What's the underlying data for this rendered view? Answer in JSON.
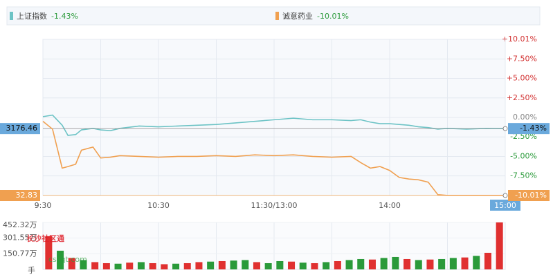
{
  "chart_data": {
    "type": "line",
    "x": [
      0,
      5,
      10,
      13,
      17,
      20,
      26,
      30,
      35,
      40,
      50,
      60,
      70,
      80,
      90,
      100,
      110,
      120,
      130,
      140,
      150,
      160,
      165,
      170,
      175,
      180,
      185,
      190,
      195,
      200,
      205,
      210,
      220,
      230,
      240
    ],
    "xlim": [
      0,
      240
    ],
    "xticks": [
      {
        "value": 0,
        "label": "9:30"
      },
      {
        "value": 60,
        "label": "10:30"
      },
      {
        "value": 120,
        "label": "11:30/13:00"
      },
      {
        "value": 180,
        "label": "14:00"
      },
      {
        "value": 240,
        "label": "15:00"
      }
    ],
    "ylim": [
      -10.01,
      10.01
    ],
    "yticks": [
      {
        "value": 10.01,
        "label": "+10.01%"
      },
      {
        "value": 7.5,
        "label": "+7.50%"
      },
      {
        "value": 5,
        "label": "+5.00%"
      },
      {
        "value": 2.5,
        "label": "+2.50%"
      },
      {
        "value": 0,
        "label": "0.00%"
      },
      {
        "value": -2.5,
        "label": "-2.50%"
      },
      {
        "value": -5,
        "label": "-5.00%"
      },
      {
        "value": -7.5,
        "label": "-7.50%"
      },
      {
        "value": -10.01,
        "label": "-10.01%"
      }
    ],
    "series": [
      {
        "name": "上证指数",
        "color": "#6cc3c5",
        "change_label": "-1.43%",
        "last_price": 3176.46,
        "values": [
          0.1,
          0.3,
          -1.0,
          -2.3,
          -2.2,
          -1.6,
          -1.4,
          -1.6,
          -1.7,
          -1.4,
          -1.1,
          -1.2,
          -1.1,
          -1.0,
          -0.9,
          -0.7,
          -0.5,
          -0.3,
          -0.1,
          -0.3,
          -0.3,
          -0.4,
          -0.3,
          -0.6,
          -0.8,
          -0.8,
          -0.9,
          -1.0,
          -1.2,
          -1.3,
          -1.5,
          -1.4,
          -1.5,
          -1.4,
          -1.43
        ]
      },
      {
        "name": "诚意药业",
        "color": "#f0a050",
        "change_label": "-10.01%",
        "last_price": 32.83,
        "values": [
          -0.5,
          -1.5,
          -6.5,
          -6.3,
          -6.0,
          -4.2,
          -3.8,
          -5.2,
          -5.1,
          -4.9,
          -5.0,
          -5.1,
          -5.0,
          -5.0,
          -4.9,
          -5.0,
          -4.8,
          -4.9,
          -4.8,
          -5.0,
          -5.1,
          -5.0,
          -5.8,
          -6.5,
          -6.3,
          -6.8,
          -7.7,
          -7.9,
          -8.0,
          -8.3,
          -9.9,
          -10.0,
          -10.0,
          -10.01,
          -10.01
        ]
      }
    ],
    "volume": {
      "ylim": [
        0,
        452.32
      ],
      "yticks": [
        {
          "value": 452.32,
          "label": "452.32万"
        },
        {
          "value": 301.55,
          "label": "301.55万"
        },
        {
          "value": 150.77,
          "label": "150.77万"
        }
      ],
      "unit": "手",
      "values": [
        320,
        180,
        110,
        90,
        70,
        60,
        55,
        65,
        70,
        60,
        50,
        55,
        60,
        70,
        75,
        80,
        85,
        90,
        70,
        60,
        80,
        75,
        65,
        60,
        70,
        80,
        90,
        100,
        95,
        110,
        120,
        100,
        90,
        95,
        100,
        110,
        115,
        130,
        160,
        452.32
      ],
      "colors": [
        "#e03030",
        "#2a9a3a",
        "#e03030",
        "#2a9a3a",
        "#e03030",
        "#e03030",
        "#2a9a3a",
        "#e03030",
        "#2a9a3a",
        "#e03030",
        "#e03030",
        "#2a9a3a",
        "#e03030",
        "#e03030",
        "#2a9a3a",
        "#e03030",
        "#2a9a3a",
        "#2a9a3a",
        "#e03030",
        "#2a9a3a",
        "#2a9a3a",
        "#e03030",
        "#2a9a3a",
        "#e03030",
        "#2a9a3a",
        "#e03030",
        "#2a9a3a",
        "#2a9a3a",
        "#e03030",
        "#2a9a3a",
        "#2a9a3a",
        "#e03030",
        "#2a9a3a",
        "#e03030",
        "#2a9a3a",
        "#2a9a3a",
        "#e03030",
        "#2a9a3a",
        "#e03030",
        "#e03030"
      ]
    },
    "watermark": [
      "长沙社区通",
      "cssqt.com"
    ]
  }
}
